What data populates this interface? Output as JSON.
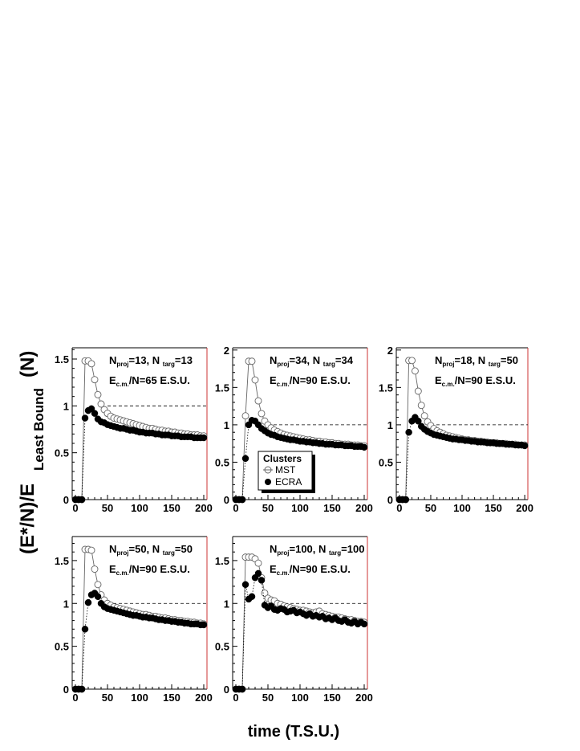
{
  "figure": {
    "ylabel_main": "(E*/N)/E",
    "ylabel_sub": "Least Bound",
    "ylabel_tail": "(N)",
    "xlabel": "time (T.S.U.)"
  },
  "legend": {
    "title": "Clusters",
    "entries": [
      {
        "label": "MST",
        "marker": "open-circle"
      },
      {
        "label": "ECRA",
        "marker": "filled-circle"
      }
    ]
  },
  "colors": {
    "frame_right": "#cc3333",
    "ink": "#000000",
    "open_marker": "#666666"
  },
  "chart_data": [
    {
      "type": "scatter",
      "annotation": {
        "line1": {
          "n": "N",
          "proj": "proj",
          "a": "=13, N ",
          "targ": "targ",
          "b": "=13"
        },
        "line2": {
          "e": "E",
          "cm": "c.m.",
          "rest": "/N=65 E.S.U."
        }
      },
      "xlim": [
        -5,
        205
      ],
      "ylim": [
        0,
        1.62
      ],
      "xticks": [
        0,
        50,
        100,
        150,
        200
      ],
      "yticks": [
        0,
        0.5,
        1,
        1.5
      ],
      "ytick_labels": [
        "0",
        "0.5",
        "1",
        "1.5"
      ],
      "reference_line": 1.0,
      "series": [
        {
          "name": "MST",
          "marker": "open",
          "x": [
            0,
            5,
            10,
            15,
            20,
            25,
            30,
            35,
            40,
            45,
            50,
            55,
            60,
            65,
            70,
            75,
            80,
            85,
            90,
            95,
            100,
            105,
            110,
            115,
            120,
            125,
            130,
            135,
            140,
            145,
            150,
            155,
            160,
            165,
            170,
            175,
            180,
            185,
            190,
            195,
            200
          ],
          "y": [
            0,
            0,
            0,
            1.48,
            1.48,
            1.45,
            1.28,
            1.12,
            1.02,
            0.96,
            0.92,
            0.89,
            0.87,
            0.86,
            0.85,
            0.84,
            0.83,
            0.82,
            0.81,
            0.8,
            0.79,
            0.78,
            0.77,
            0.76,
            0.76,
            0.75,
            0.74,
            0.74,
            0.73,
            0.73,
            0.72,
            0.72,
            0.71,
            0.71,
            0.7,
            0.7,
            0.69,
            0.69,
            0.69,
            0.68,
            0.68
          ]
        },
        {
          "name": "ECRA",
          "marker": "filled",
          "x": [
            0,
            5,
            10,
            15,
            20,
            25,
            30,
            35,
            40,
            45,
            50,
            55,
            60,
            65,
            70,
            75,
            80,
            85,
            90,
            95,
            100,
            105,
            110,
            115,
            120,
            125,
            130,
            135,
            140,
            145,
            150,
            155,
            160,
            165,
            170,
            175,
            180,
            185,
            190,
            195,
            200
          ],
          "y": [
            0,
            0,
            0,
            0.87,
            0.95,
            0.97,
            0.92,
            0.86,
            0.83,
            0.82,
            0.8,
            0.79,
            0.78,
            0.77,
            0.76,
            0.76,
            0.75,
            0.74,
            0.74,
            0.73,
            0.72,
            0.72,
            0.71,
            0.71,
            0.71,
            0.7,
            0.7,
            0.69,
            0.69,
            0.69,
            0.68,
            0.68,
            0.68,
            0.67,
            0.67,
            0.67,
            0.67,
            0.66,
            0.66,
            0.66,
            0.66
          ]
        }
      ]
    },
    {
      "type": "scatter",
      "annotation": {
        "line1": {
          "n": "N",
          "proj": "proj",
          "a": "=34, N ",
          "targ": "targ",
          "b": "=34"
        },
        "line2": {
          "e": "E",
          "cm": "c.m.",
          "rest": "/N=90 E.S.U."
        }
      },
      "xlim": [
        -5,
        205
      ],
      "ylim": [
        0,
        2.03
      ],
      "xticks": [
        0,
        50,
        100,
        150,
        200
      ],
      "yticks": [
        0,
        0.5,
        1,
        1.5,
        2
      ],
      "ytick_labels": [
        "0",
        "0.5",
        "1",
        "1.5",
        "2"
      ],
      "reference_line": 1.0,
      "series": [
        {
          "name": "MST",
          "marker": "open",
          "x": [
            0,
            5,
            10,
            15,
            20,
            25,
            30,
            35,
            40,
            45,
            50,
            55,
            60,
            65,
            70,
            75,
            80,
            85,
            90,
            95,
            100,
            105,
            110,
            115,
            120,
            125,
            130,
            135,
            140,
            145,
            150,
            155,
            160,
            165,
            170,
            175,
            180,
            185,
            190,
            195,
            200
          ],
          "y": [
            0,
            0,
            0,
            1.12,
            1.85,
            1.85,
            1.6,
            1.32,
            1.15,
            1.05,
            1.0,
            0.96,
            0.93,
            0.91,
            0.89,
            0.87,
            0.86,
            0.85,
            0.84,
            0.83,
            0.82,
            0.81,
            0.8,
            0.8,
            0.79,
            0.78,
            0.78,
            0.77,
            0.77,
            0.76,
            0.76,
            0.75,
            0.75,
            0.74,
            0.74,
            0.74,
            0.73,
            0.73,
            0.73,
            0.72,
            0.72
          ]
        },
        {
          "name": "ECRA",
          "marker": "filled",
          "x": [
            0,
            5,
            10,
            15,
            20,
            25,
            30,
            35,
            40,
            45,
            50,
            55,
            60,
            65,
            70,
            75,
            80,
            85,
            90,
            95,
            100,
            105,
            110,
            115,
            120,
            125,
            130,
            135,
            140,
            145,
            150,
            155,
            160,
            165,
            170,
            175,
            180,
            185,
            190,
            195,
            200
          ],
          "y": [
            0,
            0,
            0,
            0.55,
            1.0,
            1.06,
            1.05,
            1.0,
            0.95,
            0.92,
            0.89,
            0.87,
            0.86,
            0.84,
            0.83,
            0.82,
            0.81,
            0.8,
            0.8,
            0.79,
            0.78,
            0.78,
            0.77,
            0.77,
            0.76,
            0.76,
            0.75,
            0.75,
            0.74,
            0.74,
            0.74,
            0.73,
            0.73,
            0.73,
            0.72,
            0.72,
            0.72,
            0.71,
            0.71,
            0.71,
            0.7
          ]
        }
      ]
    },
    {
      "type": "scatter",
      "annotation": {
        "line1": {
          "n": "N",
          "proj": "proj",
          "a": "=18, N ",
          "targ": "targ",
          "b": "=50"
        },
        "line2": {
          "e": "E",
          "cm": "c.m.",
          "rest": "/N=90 E.S.U."
        }
      },
      "xlim": [
        -5,
        205
      ],
      "ylim": [
        0,
        2.03
      ],
      "xticks": [
        0,
        50,
        100,
        150,
        200
      ],
      "yticks": [
        0,
        0.5,
        1,
        1.5,
        2
      ],
      "ytick_labels": [
        "0",
        "0.5",
        "1",
        "1.5",
        "2"
      ],
      "reference_line": 1.0,
      "series": [
        {
          "name": "MST",
          "marker": "open",
          "x": [
            0,
            5,
            10,
            15,
            20,
            25,
            30,
            35,
            40,
            45,
            50,
            55,
            60,
            65,
            70,
            75,
            80,
            85,
            90,
            95,
            100,
            105,
            110,
            115,
            120,
            125,
            130,
            135,
            140,
            145,
            150,
            155,
            160,
            165,
            170,
            175,
            180,
            185,
            190,
            195,
            200
          ],
          "y": [
            0,
            0,
            0,
            1.86,
            1.86,
            1.72,
            1.45,
            1.26,
            1.12,
            1.04,
            0.99,
            0.95,
            0.92,
            0.9,
            0.88,
            0.86,
            0.85,
            0.84,
            0.83,
            0.82,
            0.81,
            0.8,
            0.8,
            0.79,
            0.79,
            0.78,
            0.78,
            0.77,
            0.77,
            0.76,
            0.76,
            0.76,
            0.75,
            0.75,
            0.75,
            0.74,
            0.74,
            0.74,
            0.73,
            0.73,
            0.73
          ]
        },
        {
          "name": "ECRA",
          "marker": "filled",
          "x": [
            0,
            5,
            10,
            15,
            20,
            25,
            30,
            35,
            40,
            45,
            50,
            55,
            60,
            65,
            70,
            75,
            80,
            85,
            90,
            95,
            100,
            105,
            110,
            115,
            120,
            125,
            130,
            135,
            140,
            145,
            150,
            155,
            160,
            165,
            170,
            175,
            180,
            185,
            190,
            195,
            200
          ],
          "y": [
            0,
            0,
            0,
            0.9,
            1.05,
            1.1,
            1.05,
            0.98,
            0.94,
            0.91,
            0.89,
            0.87,
            0.86,
            0.85,
            0.84,
            0.83,
            0.82,
            0.81,
            0.81,
            0.8,
            0.8,
            0.79,
            0.79,
            0.78,
            0.78,
            0.77,
            0.77,
            0.77,
            0.76,
            0.76,
            0.76,
            0.75,
            0.75,
            0.75,
            0.74,
            0.74,
            0.74,
            0.73,
            0.73,
            0.73,
            0.72
          ]
        }
      ]
    },
    {
      "type": "scatter",
      "annotation": {
        "line1": {
          "n": "N",
          "proj": "proj",
          "a": "=50, N ",
          "targ": "targ",
          "b": "=50"
        },
        "line2": {
          "e": "E",
          "cm": "c.m.",
          "rest": "/N=90 E.S.U."
        }
      },
      "xlim": [
        -5,
        205
      ],
      "ylim": [
        0,
        1.78
      ],
      "xticks": [
        0,
        50,
        100,
        150,
        200
      ],
      "yticks": [
        0,
        0.5,
        1,
        1.5
      ],
      "ytick_labels": [
        "0",
        "0.5",
        "1",
        "1.5"
      ],
      "reference_line": 1.0,
      "series": [
        {
          "name": "MST",
          "marker": "open",
          "x": [
            0,
            5,
            10,
            15,
            20,
            25,
            30,
            35,
            40,
            45,
            50,
            55,
            60,
            65,
            70,
            75,
            80,
            85,
            90,
            95,
            100,
            105,
            110,
            115,
            120,
            125,
            130,
            135,
            140,
            145,
            150,
            155,
            160,
            165,
            170,
            175,
            180,
            185,
            190,
            195,
            200
          ],
          "y": [
            0,
            0,
            0,
            1.63,
            1.63,
            1.62,
            1.4,
            1.22,
            1.1,
            1.04,
            1.0,
            0.98,
            0.96,
            0.95,
            0.94,
            0.93,
            0.92,
            0.91,
            0.9,
            0.89,
            0.88,
            0.87,
            0.87,
            0.86,
            0.85,
            0.85,
            0.84,
            0.83,
            0.83,
            0.82,
            0.81,
            0.81,
            0.8,
            0.8,
            0.79,
            0.79,
            0.78,
            0.78,
            0.77,
            0.77,
            0.76
          ]
        },
        {
          "name": "ECRA",
          "marker": "filled",
          "x": [
            0,
            5,
            10,
            15,
            20,
            25,
            30,
            35,
            40,
            45,
            50,
            55,
            60,
            65,
            70,
            75,
            80,
            85,
            90,
            95,
            100,
            105,
            110,
            115,
            120,
            125,
            130,
            135,
            140,
            145,
            150,
            155,
            160,
            165,
            170,
            175,
            180,
            185,
            190,
            195,
            200
          ],
          "y": [
            0,
            0,
            0,
            0.7,
            1.01,
            1.1,
            1.12,
            1.08,
            1.0,
            0.96,
            0.94,
            0.93,
            0.92,
            0.91,
            0.9,
            0.89,
            0.88,
            0.87,
            0.86,
            0.86,
            0.85,
            0.84,
            0.84,
            0.83,
            0.83,
            0.82,
            0.81,
            0.81,
            0.8,
            0.8,
            0.79,
            0.79,
            0.78,
            0.78,
            0.77,
            0.77,
            0.76,
            0.76,
            0.76,
            0.75,
            0.75
          ]
        }
      ]
    },
    {
      "type": "scatter",
      "annotation": {
        "line1": {
          "n": "N",
          "proj": "proj",
          "a": "=100, N ",
          "targ": "targ",
          "b": "=100"
        },
        "line2": {
          "e": "E",
          "cm": "c.m.",
          "rest": "/N=90 E.S.U."
        }
      },
      "xlim": [
        -5,
        205
      ],
      "ylim": [
        0,
        1.78
      ],
      "xticks": [
        0,
        50,
        100,
        150,
        200
      ],
      "yticks": [
        0,
        0.5,
        1,
        1.5
      ],
      "ytick_labels": [
        "0",
        "0.5",
        "1",
        "1.5"
      ],
      "reference_line": 1.0,
      "series": [
        {
          "name": "MST",
          "marker": "open",
          "x": [
            0,
            5,
            10,
            15,
            20,
            25,
            30,
            35,
            40,
            45,
            50,
            55,
            60,
            65,
            70,
            75,
            80,
            85,
            90,
            95,
            100,
            105,
            110,
            115,
            120,
            125,
            130,
            135,
            140,
            145,
            150,
            155,
            160,
            165,
            170,
            175,
            180,
            185,
            190,
            195,
            200
          ],
          "y": [
            0,
            0,
            0,
            1.54,
            1.54,
            1.54,
            1.52,
            1.47,
            1.3,
            1.12,
            1.06,
            1.04,
            1.03,
            1.0,
            0.99,
            0.97,
            0.96,
            0.95,
            0.94,
            0.93,
            0.92,
            0.92,
            0.91,
            0.9,
            0.89,
            0.9,
            0.91,
            0.88,
            0.87,
            0.86,
            0.85,
            0.84,
            0.84,
            0.83,
            0.82,
            0.81,
            0.81,
            0.8,
            0.79,
            0.79,
            0.78
          ]
        },
        {
          "name": "ECRA",
          "marker": "filled",
          "x": [
            0,
            5,
            10,
            15,
            20,
            25,
            30,
            35,
            40,
            45,
            50,
            55,
            60,
            65,
            70,
            75,
            80,
            85,
            90,
            95,
            100,
            105,
            110,
            115,
            120,
            125,
            130,
            135,
            140,
            145,
            150,
            155,
            160,
            165,
            170,
            175,
            180,
            185,
            190,
            195,
            200
          ],
          "y": [
            0,
            0,
            0,
            1.22,
            1.05,
            1.08,
            1.3,
            1.35,
            1.27,
            0.98,
            0.95,
            0.97,
            0.93,
            0.92,
            0.94,
            0.93,
            0.9,
            0.91,
            0.92,
            0.89,
            0.9,
            0.88,
            0.86,
            0.88,
            0.85,
            0.86,
            0.84,
            0.85,
            0.82,
            0.83,
            0.81,
            0.83,
            0.8,
            0.79,
            0.81,
            0.78,
            0.77,
            0.79,
            0.76,
            0.78,
            0.76
          ]
        }
      ]
    }
  ]
}
